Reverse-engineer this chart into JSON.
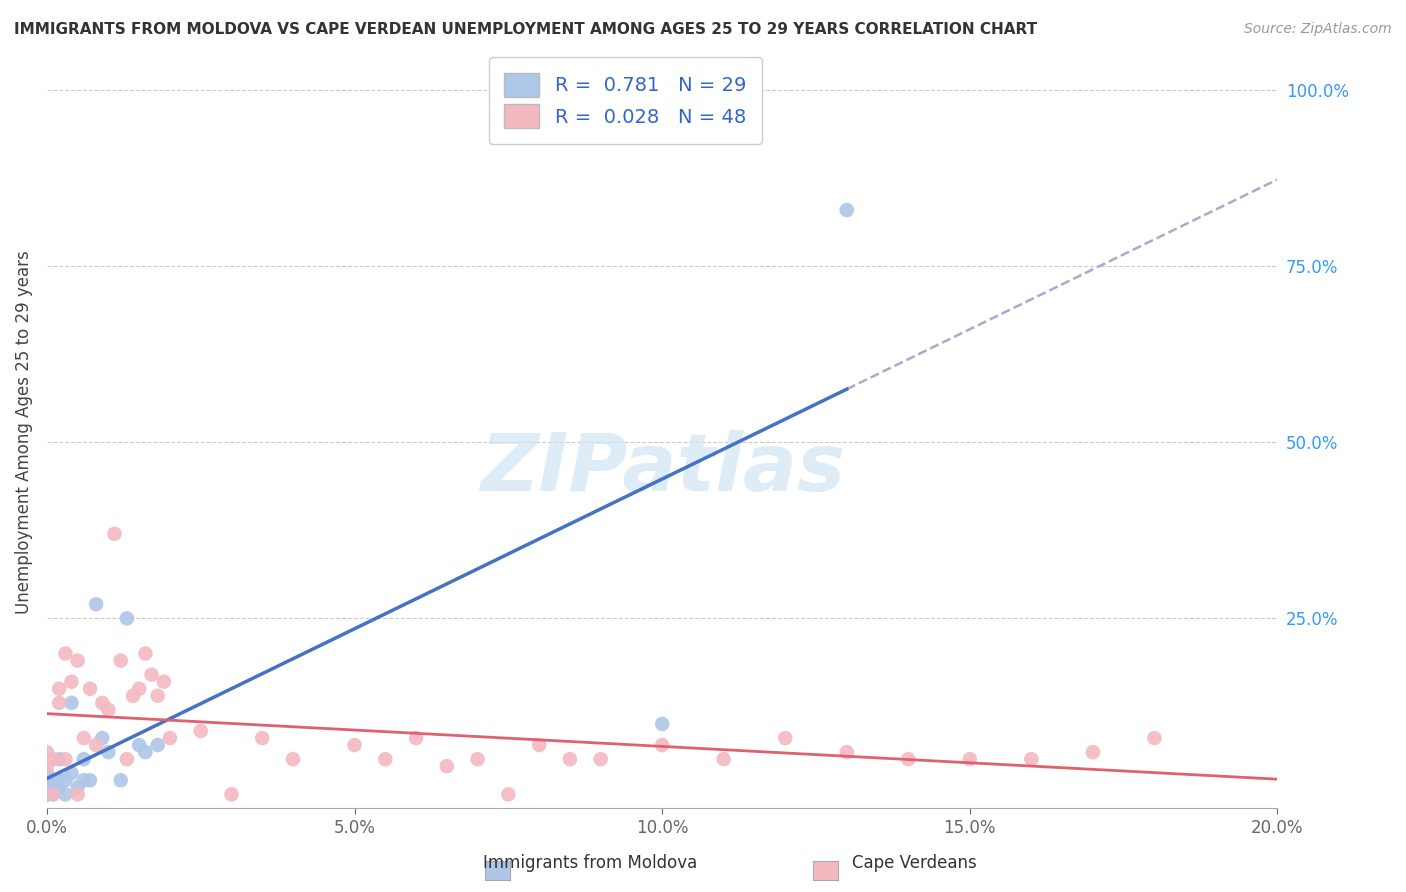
{
  "title": "IMMIGRANTS FROM MOLDOVA VS CAPE VERDEAN UNEMPLOYMENT AMONG AGES 25 TO 29 YEARS CORRELATION CHART",
  "source": "Source: ZipAtlas.com",
  "ylabel": "Unemployment Among Ages 25 to 29 years",
  "xlim": [
    0.0,
    0.2
  ],
  "ylim": [
    -0.02,
    1.05
  ],
  "xticks": [
    0.0,
    0.05,
    0.1,
    0.15,
    0.2
  ],
  "xticklabels": [
    "0.0%",
    "5.0%",
    "10.0%",
    "15.0%",
    "20.0%"
  ],
  "yticks": [
    0.0,
    0.25,
    0.5,
    0.75,
    1.0
  ],
  "yticklabels": [
    "",
    "25.0%",
    "50.0%",
    "75.0%",
    "100.0%"
  ],
  "legend_label1": "Immigrants from Moldova",
  "legend_label2": "Cape Verdeans",
  "R1": 0.781,
  "N1": 29,
  "R2": 0.028,
  "N2": 48,
  "color1": "#aec6e8",
  "color2": "#f4b8c1",
  "line_color1": "#4472c4",
  "line_color2": "#e06070",
  "watermark_color": "#d0e4f5",
  "background_color": "#ffffff",
  "grid_color": "#cccccc",
  "moldova_x": [
    0.0,
    0.0,
    0.0,
    0.0,
    0.0,
    0.001,
    0.001,
    0.001,
    0.002,
    0.002,
    0.002,
    0.003,
    0.003,
    0.004,
    0.004,
    0.005,
    0.006,
    0.006,
    0.007,
    0.008,
    0.009,
    0.01,
    0.012,
    0.013,
    0.015,
    0.016,
    0.018,
    0.1,
    0.13
  ],
  "moldova_y": [
    0.0,
    0.0,
    0.01,
    0.02,
    0.03,
    0.0,
    0.01,
    0.02,
    0.01,
    0.02,
    0.05,
    0.0,
    0.02,
    0.03,
    0.13,
    0.01,
    0.05,
    0.02,
    0.02,
    0.27,
    0.08,
    0.06,
    0.02,
    0.25,
    0.07,
    0.06,
    0.07,
    0.1,
    0.83
  ],
  "capeverde_x": [
    0.0,
    0.0,
    0.001,
    0.001,
    0.002,
    0.002,
    0.003,
    0.003,
    0.004,
    0.005,
    0.005,
    0.006,
    0.007,
    0.008,
    0.009,
    0.01,
    0.011,
    0.012,
    0.013,
    0.014,
    0.015,
    0.016,
    0.017,
    0.018,
    0.019,
    0.02,
    0.025,
    0.03,
    0.035,
    0.04,
    0.05,
    0.055,
    0.06,
    0.065,
    0.07,
    0.075,
    0.08,
    0.085,
    0.09,
    0.1,
    0.11,
    0.12,
    0.13,
    0.14,
    0.15,
    0.16,
    0.17,
    0.18
  ],
  "capeverde_y": [
    0.04,
    0.06,
    0.0,
    0.05,
    0.13,
    0.15,
    0.2,
    0.05,
    0.16,
    0.0,
    0.19,
    0.08,
    0.15,
    0.07,
    0.13,
    0.12,
    0.37,
    0.19,
    0.05,
    0.14,
    0.15,
    0.2,
    0.17,
    0.14,
    0.16,
    0.08,
    0.09,
    0.0,
    0.08,
    0.05,
    0.07,
    0.05,
    0.08,
    0.04,
    0.05,
    0.0,
    0.07,
    0.05,
    0.05,
    0.07,
    0.05,
    0.08,
    0.06,
    0.05,
    0.05,
    0.05,
    0.06,
    0.08
  ],
  "solid_line_end_x": 0.13,
  "dashed_line_start_x": 0.13,
  "title_fontsize": 11,
  "axis_label_fontsize": 12,
  "tick_fontsize": 12,
  "legend_fontsize": 14
}
